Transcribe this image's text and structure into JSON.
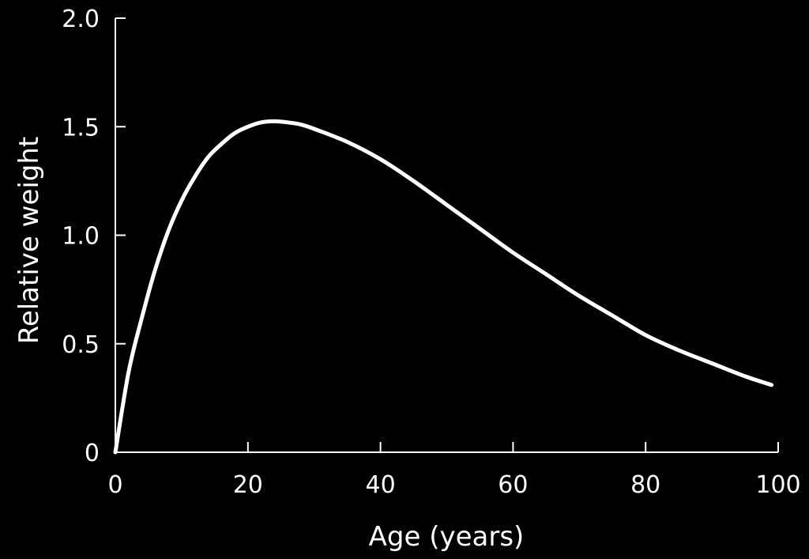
{
  "chart_data": {
    "type": "line",
    "title": "",
    "xlabel": "Age (years)",
    "ylabel": "Relative weight",
    "xlim": [
      0,
      100
    ],
    "ylim": [
      0,
      2.0
    ],
    "x_ticks": [
      0,
      20,
      40,
      60,
      80,
      100
    ],
    "x_tick_labels": [
      "0",
      "20",
      "40",
      "60",
      "80",
      "100"
    ],
    "y_ticks": [
      0,
      0.5,
      1.0,
      1.5,
      2.0
    ],
    "y_tick_labels": [
      "0",
      "0.5",
      "1.0",
      "1.5",
      "2.0"
    ],
    "grid": false,
    "legend": "none",
    "colors": {
      "background": "#000000",
      "foreground": "#ffffff"
    },
    "series": [
      {
        "x": [
          0,
          2,
          4,
          6,
          8,
          10,
          12,
          14,
          16,
          18,
          20,
          22,
          24,
          26,
          28,
          30,
          35,
          40,
          45,
          50,
          55,
          60,
          65,
          70,
          75,
          80,
          85,
          90,
          95,
          99
        ],
        "y": [
          0.0,
          0.37,
          0.62,
          0.84,
          1.02,
          1.16,
          1.27,
          1.36,
          1.42,
          1.47,
          1.5,
          1.52,
          1.525,
          1.52,
          1.51,
          1.49,
          1.43,
          1.35,
          1.25,
          1.14,
          1.03,
          0.92,
          0.82,
          0.72,
          0.63,
          0.54,
          0.47,
          0.41,
          0.35,
          0.31
        ]
      }
    ]
  }
}
